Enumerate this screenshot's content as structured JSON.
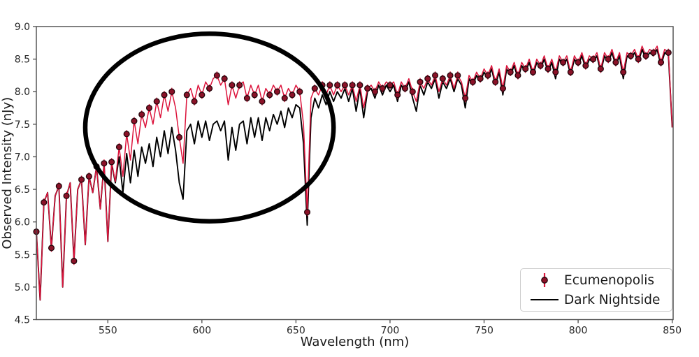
{
  "figure": {
    "background": "#ffffff"
  },
  "legend": {
    "position": "lower right",
    "items": [
      {
        "label": "Ecumenopolis",
        "symbol": "errorbar-dot",
        "line_color": "#dc143c",
        "marker_fill": "#8b1228",
        "marker_edge": "#23050b"
      },
      {
        "label": "Dark Nightside",
        "symbol": "line",
        "line_color": "#000000"
      }
    ]
  },
  "chart_data": {
    "type": "line",
    "title": "",
    "xlabel": "Wavelength (nm)",
    "ylabel": "Observed Intensity (nJy)",
    "xlim": [
      512,
      850.5
    ],
    "ylim": [
      4.5,
      9.0
    ],
    "x_ticks": [
      550,
      600,
      650,
      700,
      750,
      800,
      850
    ],
    "y_ticks": [
      4.5,
      5.0,
      5.5,
      6.0,
      6.5,
      7.0,
      7.5,
      8.0,
      8.5,
      9.0
    ],
    "grid": false,
    "legend_position": "lower right",
    "x_start": 512,
    "x_step": 2,
    "series": [
      {
        "name": "Ecumenopolis",
        "style": "line+markers+errorbars",
        "color": "#dc143c",
        "marker": "o",
        "marker_fill": "#8b1228",
        "marker_edge": "#23050b",
        "marker_every": 2,
        "error_bar": 0.06,
        "values": [
          5.85,
          4.8,
          6.3,
          6.45,
          5.6,
          6.4,
          6.55,
          5.0,
          6.4,
          6.6,
          5.4,
          6.5,
          6.65,
          5.65,
          6.7,
          6.45,
          6.85,
          6.2,
          6.9,
          5.7,
          6.92,
          6.62,
          7.15,
          6.7,
          7.35,
          6.95,
          7.55,
          7.2,
          7.65,
          7.45,
          7.75,
          7.5,
          7.85,
          7.6,
          7.95,
          7.7,
          8.0,
          7.75,
          7.3,
          6.9,
          7.95,
          8.05,
          7.85,
          8.1,
          7.95,
          8.15,
          8.05,
          8.2,
          8.25,
          8.1,
          8.2,
          7.8,
          8.1,
          7.9,
          8.1,
          8.15,
          7.9,
          8.1,
          7.95,
          8.1,
          7.85,
          8.05,
          7.95,
          8.1,
          8.0,
          8.1,
          7.9,
          8.05,
          7.95,
          8.1,
          8.0,
          7.5,
          6.15,
          7.9,
          8.05,
          7.95,
          8.1,
          7.95,
          8.1,
          7.95,
          8.1,
          8.0,
          8.1,
          7.95,
          8.1,
          7.85,
          8.1,
          7.75,
          8.05,
          8.1,
          8.0,
          8.15,
          8.05,
          8.15,
          8.1,
          8.15,
          7.95,
          8.15,
          8.05,
          8.2,
          8.0,
          7.85,
          8.15,
          8.05,
          8.2,
          8.1,
          8.25,
          8.0,
          8.2,
          8.1,
          8.25,
          8.05,
          8.25,
          8.15,
          7.9,
          8.25,
          8.15,
          8.3,
          8.2,
          8.35,
          8.25,
          8.4,
          8.15,
          8.35,
          8.05,
          8.4,
          8.3,
          8.45,
          8.25,
          8.45,
          8.35,
          8.5,
          8.3,
          8.5,
          8.4,
          8.55,
          8.35,
          8.5,
          8.3,
          8.55,
          8.45,
          8.55,
          8.3,
          8.55,
          8.45,
          8.6,
          8.4,
          8.55,
          8.5,
          8.6,
          8.35,
          8.6,
          8.5,
          8.65,
          8.45,
          8.6,
          8.3,
          8.6,
          8.55,
          8.65,
          8.5,
          8.7,
          8.55,
          8.65,
          8.6,
          8.7,
          8.45,
          8.65,
          8.6,
          7.45
        ]
      },
      {
        "name": "Dark Nightside",
        "style": "line",
        "color": "#000000",
        "values": [
          5.85,
          4.8,
          6.3,
          6.45,
          5.6,
          6.4,
          6.55,
          5.0,
          6.4,
          6.6,
          5.4,
          6.5,
          6.65,
          5.65,
          6.7,
          6.45,
          6.85,
          6.2,
          6.9,
          5.7,
          6.9,
          6.6,
          7.0,
          6.45,
          7.05,
          6.6,
          7.1,
          6.7,
          7.15,
          6.9,
          7.2,
          6.85,
          7.3,
          7.0,
          7.4,
          7.05,
          7.45,
          7.1,
          6.6,
          6.35,
          7.4,
          7.5,
          7.2,
          7.55,
          7.3,
          7.55,
          7.25,
          7.5,
          7.55,
          7.4,
          7.55,
          6.95,
          7.45,
          7.1,
          7.5,
          7.55,
          7.2,
          7.6,
          7.3,
          7.6,
          7.25,
          7.6,
          7.4,
          7.65,
          7.5,
          7.7,
          7.45,
          7.75,
          7.6,
          7.8,
          7.75,
          7.2,
          5.95,
          7.6,
          7.9,
          7.75,
          7.95,
          7.8,
          8.0,
          7.85,
          8.0,
          7.9,
          8.05,
          7.85,
          8.05,
          7.7,
          8.05,
          7.6,
          8.0,
          8.05,
          7.9,
          8.1,
          7.95,
          8.1,
          8.0,
          8.1,
          7.85,
          8.1,
          8.0,
          8.15,
          7.9,
          7.7,
          8.1,
          7.95,
          8.15,
          8.05,
          8.2,
          7.9,
          8.15,
          8.05,
          8.2,
          8.0,
          8.2,
          8.1,
          7.75,
          8.2,
          8.1,
          8.25,
          8.15,
          8.3,
          8.2,
          8.35,
          8.1,
          8.3,
          7.95,
          8.35,
          8.25,
          8.4,
          8.2,
          8.4,
          8.3,
          8.45,
          8.25,
          8.45,
          8.35,
          8.5,
          8.3,
          8.45,
          8.2,
          8.5,
          8.4,
          8.5,
          8.25,
          8.5,
          8.4,
          8.55,
          8.35,
          8.5,
          8.45,
          8.55,
          8.3,
          8.55,
          8.45,
          8.6,
          8.4,
          8.55,
          8.2,
          8.55,
          8.5,
          8.6,
          8.45,
          8.65,
          8.5,
          8.6,
          8.55,
          8.65,
          8.4,
          8.6,
          8.55,
          7.45
        ]
      }
    ],
    "annotation_ellipse": {
      "description": "hand-drawn black ellipse highlighting 540-670 nm region where Ecumenopolis exceeds Dark Nightside",
      "center_x_nm": 604,
      "center_y_njy": 7.45,
      "radius_x_nm": 66,
      "radius_y_njy": 1.44,
      "color": "#000000",
      "stroke_width": 6.5
    }
  }
}
